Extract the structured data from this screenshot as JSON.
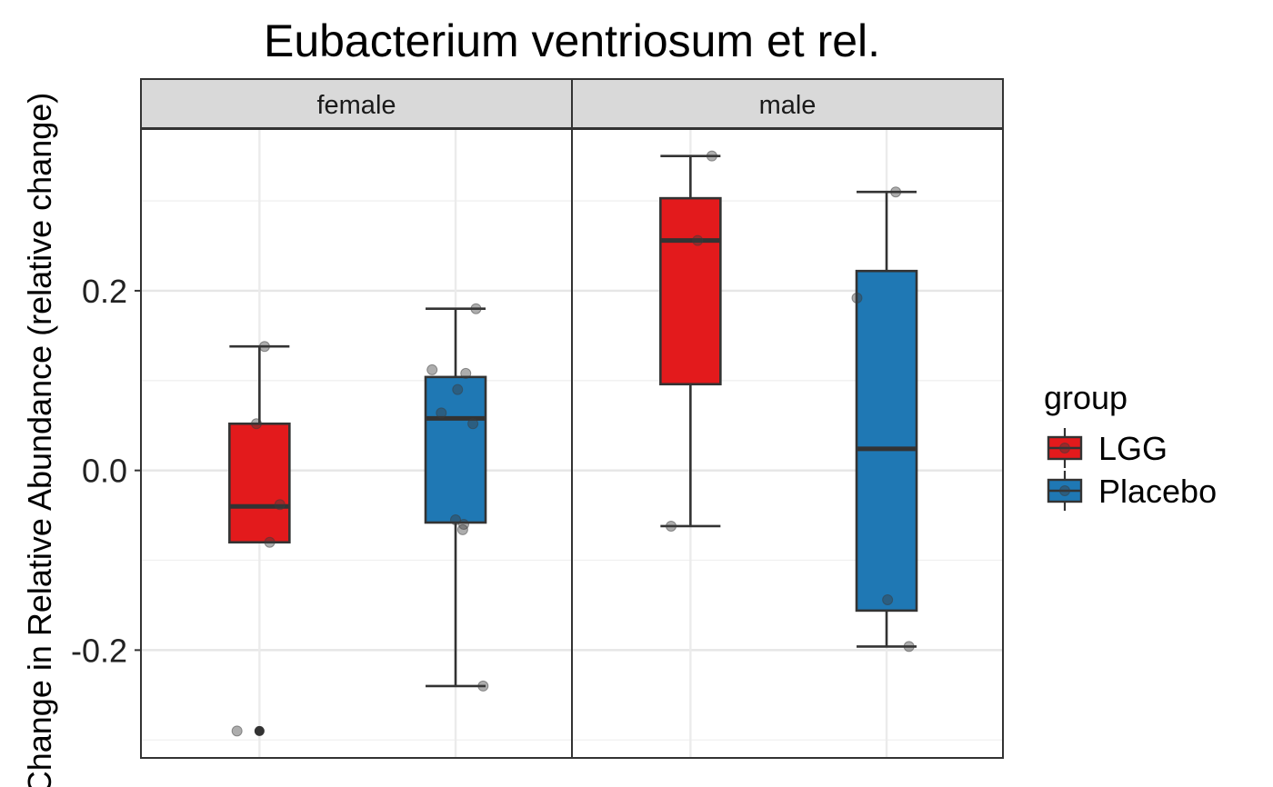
{
  "chart_data": {
    "type": "boxplot",
    "title": "Eubacterium ventriosum et rel.",
    "ylabel": "Change in Relative Abundance (relative change)",
    "xlabel": "",
    "ylim": [
      -0.32,
      0.38
    ],
    "yticks": [
      -0.2,
      0.0,
      0.2
    ],
    "ytick_labels": [
      "-0.2",
      "0.0",
      "0.2"
    ],
    "grid": true,
    "legend": {
      "title": "group",
      "position": "right",
      "entries": [
        "LGG",
        "Placebo"
      ]
    },
    "colors": {
      "LGG": "#e31a1c",
      "Placebo": "#1f78b4"
    },
    "facets": [
      {
        "label": "female",
        "boxes": [
          {
            "group": "LGG",
            "whisker_low": -0.08,
            "q1": -0.08,
            "median": -0.04,
            "q3": 0.052,
            "whisker_high": 0.138,
            "outliers": [
              -0.29
            ],
            "points": [
              {
                "y": 0.138,
                "jitter": 0.05
              },
              {
                "y": 0.052,
                "jitter": -0.03
              },
              {
                "y": -0.038,
                "jitter": 0.2
              },
              {
                "y": -0.08,
                "jitter": 0.1
              },
              {
                "y": -0.29,
                "jitter": -0.22
              }
            ]
          },
          {
            "group": "Placebo",
            "whisker_low": -0.24,
            "q1": -0.058,
            "median": 0.058,
            "q3": 0.104,
            "whisker_high": 0.18,
            "outliers": [],
            "points": [
              {
                "y": 0.18,
                "jitter": 0.2
              },
              {
                "y": 0.112,
                "jitter": -0.23
              },
              {
                "y": 0.108,
                "jitter": 0.1
              },
              {
                "y": 0.09,
                "jitter": 0.02
              },
              {
                "y": 0.064,
                "jitter": -0.14
              },
              {
                "y": 0.052,
                "jitter": 0.17
              },
              {
                "y": -0.055,
                "jitter": 0.0
              },
              {
                "y": -0.06,
                "jitter": 0.08
              },
              {
                "y": -0.066,
                "jitter": 0.07
              },
              {
                "y": -0.24,
                "jitter": 0.27
              }
            ]
          }
        ]
      },
      {
        "label": "male",
        "boxes": [
          {
            "group": "LGG",
            "whisker_low": -0.062,
            "q1": 0.096,
            "median": 0.256,
            "q3": 0.303,
            "whisker_high": 0.35,
            "outliers": [],
            "points": [
              {
                "y": 0.35,
                "jitter": 0.21
              },
              {
                "y": 0.256,
                "jitter": 0.07
              },
              {
                "y": -0.062,
                "jitter": -0.19
              }
            ]
          },
          {
            "group": "Placebo",
            "whisker_low": -0.196,
            "q1": -0.156,
            "median": 0.024,
            "q3": 0.222,
            "whisker_high": 0.31,
            "outliers": [],
            "points": [
              {
                "y": 0.31,
                "jitter": 0.09
              },
              {
                "y": 0.192,
                "jitter": -0.29
              },
              {
                "y": -0.144,
                "jitter": 0.01
              },
              {
                "y": -0.196,
                "jitter": 0.22
              }
            ]
          }
        ]
      }
    ]
  }
}
